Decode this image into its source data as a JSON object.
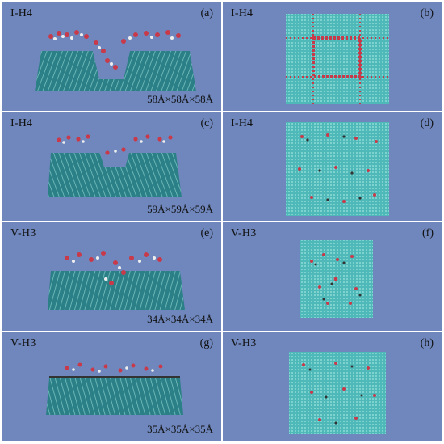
{
  "panels": [
    {
      "id": "a",
      "label": "I-H4",
      "tag": "(a)",
      "dims": "58Å×58Å×58Å",
      "view": "side"
    },
    {
      "id": "b",
      "label": "I-H4",
      "tag": "(b)",
      "dims": "",
      "view": "top"
    },
    {
      "id": "c",
      "label": "I-H4",
      "tag": "(c)",
      "dims": "59Å×59Å×59Å",
      "view": "side"
    },
    {
      "id": "d",
      "label": "I-H4",
      "tag": "(d)",
      "dims": "",
      "view": "top"
    },
    {
      "id": "e",
      "label": "V-H3",
      "tag": "(e)",
      "dims": "34Å×34Å×34Å",
      "view": "side"
    },
    {
      "id": "f",
      "label": "V-H3",
      "tag": "(f)",
      "dims": "",
      "view": "top"
    },
    {
      "id": "g",
      "label": "V-H3",
      "tag": "(g)",
      "dims": "35Å×35Å×35Å",
      "view": "side"
    },
    {
      "id": "h",
      "label": "V-H3",
      "tag": "(h)",
      "dims": "",
      "view": "top"
    }
  ],
  "colors": {
    "background": "#6f87bd",
    "lattice": "#5fd0c8",
    "lattice_dark": "#2f5f7a",
    "molecule_red": "#c83a4a",
    "molecule_white": "#eeeeee"
  }
}
